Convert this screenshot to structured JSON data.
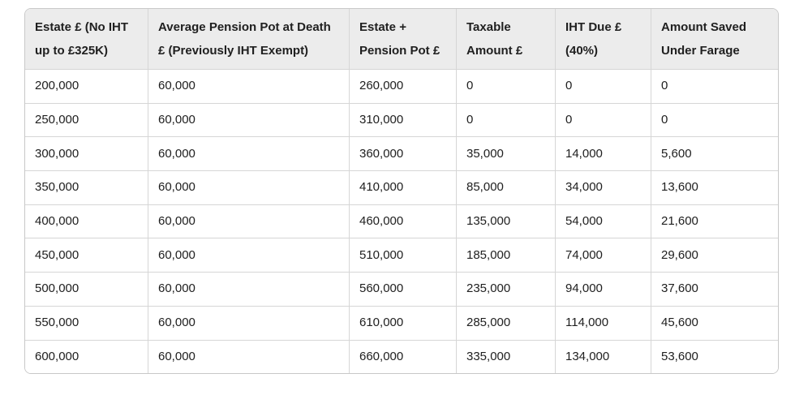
{
  "colors": {
    "page_bg": "#ffffff",
    "header_bg": "#ececec",
    "border_outer": "#c8c8c8",
    "border_inner": "#d6d6d6",
    "text": "#202020"
  },
  "table": {
    "columns": [
      "Estate £ (No IHT up to £325K)",
      "Average Pension Pot at Death £ (Previously IHT Exempt)",
      "Estate + Pension Pot £",
      "Taxable Amount £",
      "IHT Due £ (40%)",
      "Amount Saved Under Farage"
    ],
    "rows": [
      [
        "200,000",
        "60,000",
        "260,000",
        "0",
        "0",
        "0"
      ],
      [
        "250,000",
        "60,000",
        "310,000",
        "0",
        "0",
        "0"
      ],
      [
        "300,000",
        "60,000",
        "360,000",
        "35,000",
        "14,000",
        "5,600"
      ],
      [
        "350,000",
        "60,000",
        "410,000",
        "85,000",
        "34,000",
        "13,600"
      ],
      [
        "400,000",
        "60,000",
        "460,000",
        "135,000",
        "54,000",
        "21,600"
      ],
      [
        "450,000",
        "60,000",
        "510,000",
        "185,000",
        "74,000",
        "29,600"
      ],
      [
        "500,000",
        "60,000",
        "560,000",
        "235,000",
        "94,000",
        "37,600"
      ],
      [
        "550,000",
        "60,000",
        "610,000",
        "285,000",
        "114,000",
        "45,600"
      ],
      [
        "600,000",
        "60,000",
        "660,000",
        "335,000",
        "134,000",
        "53,600"
      ]
    ]
  }
}
